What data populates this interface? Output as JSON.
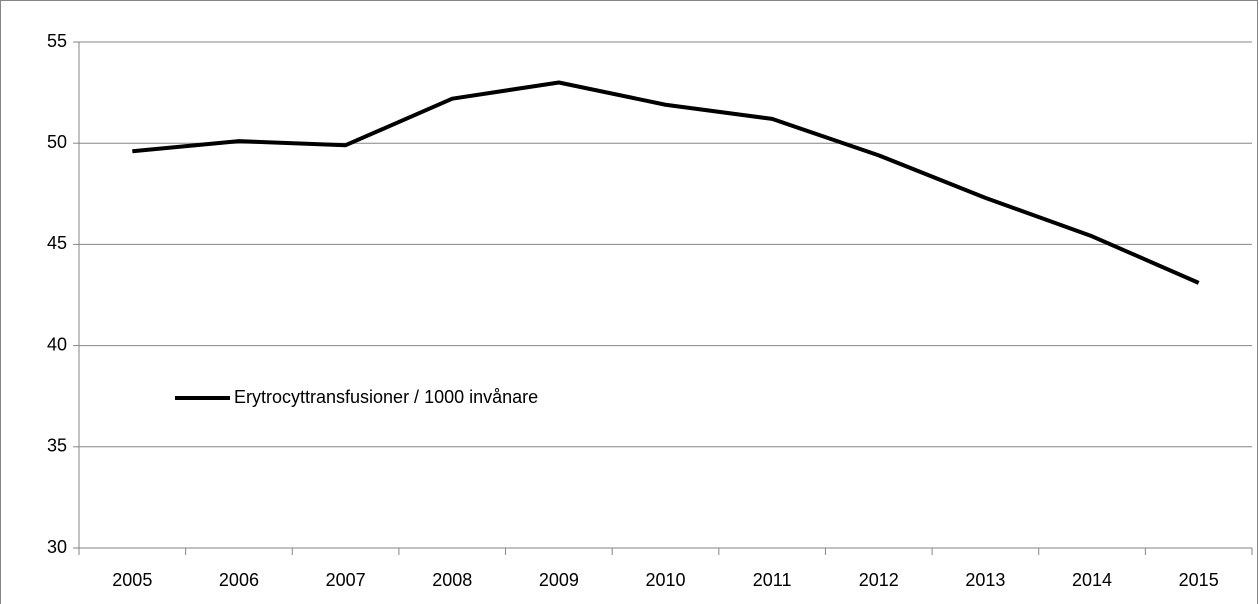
{
  "chart_data": {
    "type": "line",
    "categories": [
      "2005",
      "2006",
      "2007",
      "2008",
      "2009",
      "2010",
      "2011",
      "2012",
      "2013",
      "2014",
      "2015"
    ],
    "series": [
      {
        "name": "Erytrocyttransfusioner / 1000 invånare",
        "color": "#000000",
        "values": [
          49.6,
          50.1,
          49.9,
          52.2,
          53.0,
          51.9,
          51.2,
          49.4,
          47.3,
          45.4,
          43.1
        ]
      }
    ],
    "ylim": [
      30,
      55
    ],
    "yticks": [
      30,
      35,
      40,
      45,
      50,
      55
    ],
    "grid": true,
    "legend": "left"
  }
}
